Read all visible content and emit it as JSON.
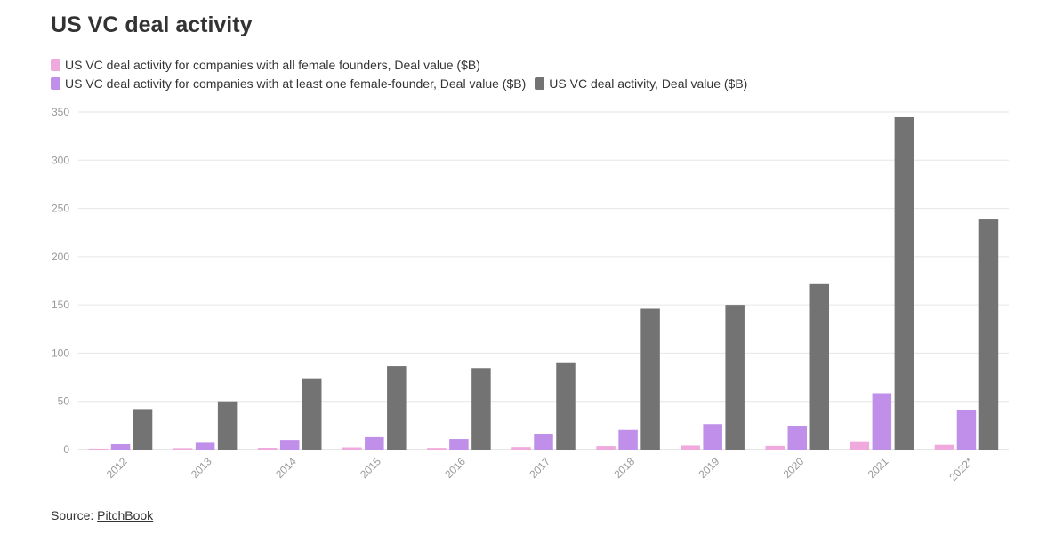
{
  "chart_data": {
    "type": "bar",
    "title": "US VC deal activity",
    "categories": [
      "2012",
      "2013",
      "2014",
      "2015",
      "2016",
      "2017",
      "2018",
      "2019",
      "2020",
      "2021",
      "2022*"
    ],
    "series": [
      {
        "name": "US VC deal activity for companies with all female founders, Deal value ($B)",
        "color": "#f0a9dc",
        "values": [
          1.0,
          1.5,
          1.8,
          2.3,
          1.7,
          2.6,
          3.6,
          4.2,
          3.8,
          8.6,
          4.9
        ]
      },
      {
        "name": "US VC deal activity for companies with at least one female-founder, Deal value ($B)",
        "color": "#bf8fe9",
        "values": [
          5.5,
          7.0,
          10.0,
          13.0,
          11.0,
          16.5,
          20.5,
          26.5,
          24.0,
          58.5,
          41.0
        ]
      },
      {
        "name": "US VC deal activity, Deal value ($B)",
        "color": "#737373",
        "values": [
          42,
          50,
          74,
          86.5,
          84.5,
          90.5,
          146,
          150,
          171.5,
          344.5,
          238.5
        ]
      }
    ],
    "ylim": [
      0,
      350
    ],
    "yticks": [
      "0",
      "50",
      "100",
      "150",
      "200",
      "250",
      "300",
      "350"
    ],
    "grid": true,
    "legend_position": "top"
  },
  "source": {
    "label": "Source: ",
    "link_text": "PitchBook"
  }
}
